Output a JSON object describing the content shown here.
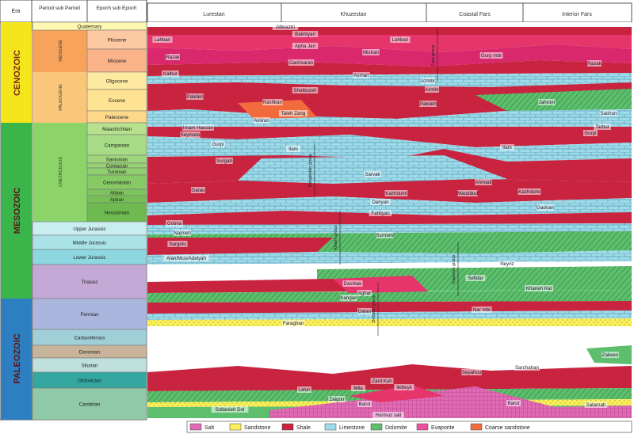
{
  "headers": {
    "era": "Era",
    "period": "Period sub Period",
    "epoch": "Epoch sub Epoch",
    "regions": [
      "Lurestan",
      "Khuzestan",
      "Coastal Fars",
      "Interior Fars"
    ]
  },
  "eras": [
    {
      "name": "CENOZOIC",
      "color": "#f5e61c"
    },
    {
      "name": "MESOZOIC",
      "color": "#39b54a"
    },
    {
      "name": "PALEOZOIC",
      "color": "#2e7fc1"
    }
  ],
  "periods": [
    {
      "name": "NEOGENE"
    },
    {
      "name": "PALEOGENE"
    },
    {
      "name": "CRETACEOUS"
    }
  ],
  "epochs": [
    {
      "name": "Quaternary",
      "color": "#fff8b0"
    },
    {
      "name": "Pliocene",
      "color": "#fcc9a3"
    },
    {
      "name": "Miocene",
      "color": "#fbb38a"
    },
    {
      "name": "Oligocene",
      "color": "#fdeaa0"
    },
    {
      "name": "Eocene",
      "color": "#fde392"
    },
    {
      "name": "Paleocene",
      "color": "#fdd88a"
    },
    {
      "name": "Maastrichtian",
      "color": "#b7e18f"
    },
    {
      "name": "Campanian",
      "color": "#a8db85"
    },
    {
      "name": "Santonian",
      "color": "#9fd67d"
    },
    {
      "name": "Coniacian",
      "color": "#97d274"
    },
    {
      "name": "Turonian",
      "color": "#8fce6c"
    },
    {
      "name": "Cenomanian",
      "color": "#86c965"
    },
    {
      "name": "Albian",
      "color": "#7ec45e"
    },
    {
      "name": "Aptian",
      "color": "#76bf57"
    },
    {
      "name": "Neocamian",
      "color": "#6eba50"
    },
    {
      "name": "Upper Jurassic",
      "color": "#c9eef0"
    },
    {
      "name": "Middle Jurassic",
      "color": "#a9e3e8"
    },
    {
      "name": "Lower Jurassic",
      "color": "#8dd7e0"
    },
    {
      "name": "Triassic",
      "color": "#c4a8d6"
    },
    {
      "name": "Permian",
      "color": "#aab6dd"
    },
    {
      "name": "Carboniferous",
      "color": "#9fd0d8"
    },
    {
      "name": "Devonian",
      "color": "#c8b49a"
    },
    {
      "name": "Silurian",
      "color": "#bfe0dc"
    },
    {
      "name": "Ordovician",
      "color": "#33a7a0"
    },
    {
      "name": "Cambrian",
      "color": "#8fc9a8"
    }
  ],
  "formations": [
    "Albvaztri",
    "Bakhtyari",
    "Lahbari",
    "Lahbari",
    "Agha Jari",
    "Mishan",
    "Gurp mbr",
    "Razak",
    "Gachsaran",
    "Razak",
    "Kalhur",
    "Asmari",
    "Azmbr",
    "Azmbr",
    "Pabdeh",
    "Shelbozeh",
    "Kashkan",
    "Pabdeh",
    "Jahrom",
    "Taleh Zang",
    "Amiran",
    "Sachun",
    "Imam Hassan",
    "Seymare",
    "Gurpi",
    "Gurpi",
    "Tarbur",
    "Ilam",
    "Ilam",
    "Surgah",
    "Sarvak",
    "Garau",
    "Ahmadi",
    "Kazhdumi",
    "Mauddud",
    "Kazhdumi",
    "Dariyan",
    "Gadvan",
    "Fahliyan",
    "Gotnia",
    "Najmeh",
    "Surmeh",
    "Sargelu",
    "Alan/Mus/Adaiyah",
    "Neyriz",
    "Dashtak",
    "Sefidar",
    "Aghar",
    "Khaneh Kat",
    "Kangan",
    "Dalan",
    "Nar mbr",
    "Faraghan",
    "Zakeen",
    "Sarchahan",
    "Seyahou",
    "Zard Kuh",
    "Ilebeyk",
    "Lalun",
    "Mila",
    "Zaigun",
    "Barut",
    "Barut",
    "Soltanieh Dol",
    "Hormuz salt",
    "Salarnah"
  ],
  "groups": [
    "Fars group",
    "Bangestan group",
    "Khami group",
    "Kazerun group",
    "Dehram group"
  ],
  "legend": [
    {
      "label": "Salt",
      "color": "#e06ab4"
    },
    {
      "label": "Sandstone",
      "color": "#f8ef5a"
    },
    {
      "label": "Shale",
      "color": "#c8233f"
    },
    {
      "label": "Limestone",
      "color": "#9edbe8"
    },
    {
      "label": "Dolomite",
      "color": "#5dbf6d"
    },
    {
      "label": "Evaporite",
      "color": "#ef4fa0"
    },
    {
      "label": "Coarse sandstone",
      "color": "#f26b3c"
    }
  ]
}
